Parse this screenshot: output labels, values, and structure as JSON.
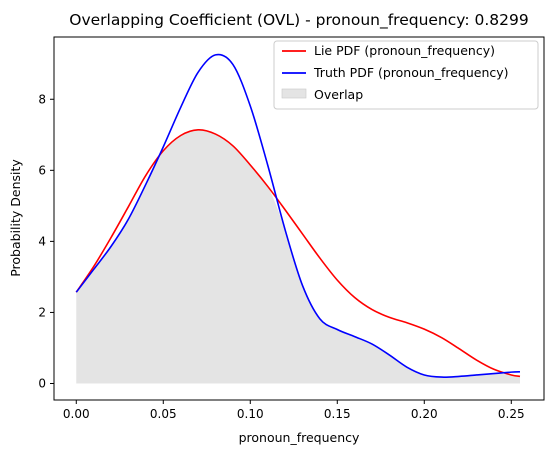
{
  "chart_data": {
    "type": "area",
    "title": "Overlapping Coefficient (OVL) - pronoun_frequency: 0.8299",
    "xlabel": "pronoun_frequency",
    "ylabel": "Probability Density",
    "xlim": [
      -0.0128,
      0.2688
    ],
    "ylim": [
      -0.4644,
      9.7524
    ],
    "xticks": [
      0.0,
      0.05,
      0.1,
      0.15,
      0.2,
      0.25
    ],
    "xtick_labels": [
      "0.00",
      "0.05",
      "0.10",
      "0.15",
      "0.20",
      "0.25"
    ],
    "yticks": [
      0,
      2,
      4,
      6,
      8
    ],
    "ytick_labels": [
      "0",
      "2",
      "4",
      "6",
      "8"
    ],
    "grid": false,
    "legend_position": "top-right",
    "series": [
      {
        "name": "Lie PDF (pronoun_frequency)",
        "color": "#ff0000",
        "kind": "line",
        "x": [
          0.0,
          0.01,
          0.02,
          0.03,
          0.04,
          0.05,
          0.06,
          0.07,
          0.08,
          0.09,
          0.1,
          0.11,
          0.12,
          0.13,
          0.14,
          0.15,
          0.16,
          0.17,
          0.18,
          0.19,
          0.2,
          0.21,
          0.22,
          0.23,
          0.24,
          0.25,
          0.255
        ],
        "y": [
          2.57,
          3.29,
          4.11,
          4.98,
          5.86,
          6.55,
          6.98,
          7.14,
          7.02,
          6.69,
          6.15,
          5.55,
          4.89,
          4.21,
          3.53,
          2.91,
          2.42,
          2.08,
          1.86,
          1.71,
          1.53,
          1.29,
          0.98,
          0.66,
          0.4,
          0.24,
          0.2
        ]
      },
      {
        "name": "Truth PDF (pronoun_frequency)",
        "color": "#0000ff",
        "kind": "line",
        "x": [
          0.0,
          0.01,
          0.02,
          0.03,
          0.04,
          0.05,
          0.06,
          0.07,
          0.08,
          0.09,
          0.1,
          0.11,
          0.12,
          0.13,
          0.14,
          0.15,
          0.16,
          0.17,
          0.18,
          0.19,
          0.2,
          0.21,
          0.22,
          0.23,
          0.24,
          0.25,
          0.255
        ],
        "y": [
          2.57,
          3.21,
          3.86,
          4.63,
          5.61,
          6.66,
          7.77,
          8.76,
          9.25,
          8.98,
          7.81,
          6.15,
          4.33,
          2.76,
          1.82,
          1.52,
          1.32,
          1.11,
          0.8,
          0.46,
          0.24,
          0.18,
          0.2,
          0.24,
          0.28,
          0.32,
          0.33
        ]
      },
      {
        "name": "Overlap",
        "color": "#e4e4e4",
        "kind": "fill",
        "x": [
          0.0,
          0.01,
          0.02,
          0.03,
          0.04,
          0.05,
          0.06,
          0.07,
          0.08,
          0.09,
          0.1,
          0.11,
          0.12,
          0.13,
          0.14,
          0.15,
          0.16,
          0.17,
          0.18,
          0.19,
          0.2,
          0.21,
          0.22,
          0.23,
          0.24,
          0.25,
          0.255
        ],
        "y": [
          2.57,
          3.21,
          3.86,
          4.63,
          5.61,
          6.55,
          6.98,
          7.14,
          7.02,
          6.69,
          6.15,
          5.55,
          4.33,
          2.76,
          1.82,
          1.52,
          1.32,
          1.11,
          0.8,
          0.46,
          0.24,
          0.18,
          0.2,
          0.24,
          0.28,
          0.24,
          0.2
        ]
      }
    ]
  }
}
